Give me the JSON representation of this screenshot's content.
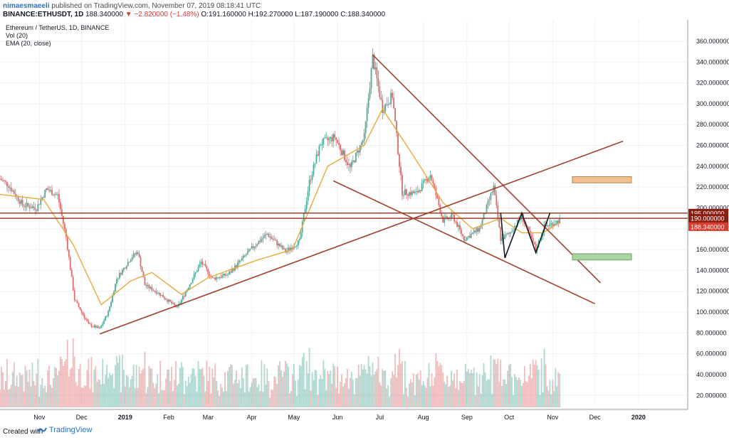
{
  "header": {
    "author": "nimaesmaeeli",
    "published_text": "published on TradingView.com, November 07, 2019 08:18:41 UTC",
    "symbol": "BINANCE:ETHUSDT, 1D",
    "last": "188.340000",
    "change": "−2.820000 (−1.48%)",
    "ohlc_open_label": "O:",
    "ohlc_open": "191.160000",
    "ohlc_high_label": "H:",
    "ohlc_high": "192.270000",
    "ohlc_low_label": "L:",
    "ohlc_low": "187.190000",
    "ohlc_close_label": "C:",
    "ohlc_close": "188.340000"
  },
  "footer": {
    "created_with": "Created with",
    "brand": "TradingView"
  },
  "colors": {
    "up": "#4fa89a",
    "down": "#d96d6d",
    "ema": "#e8a93b",
    "trend": "#a1402c",
    "pattern": "#131722",
    "orange_box": "#f2c08c",
    "green_box": "#a8d5a0",
    "price_tag": "#8b1e10",
    "last_tag": "#d93b2e"
  },
  "chart_data": {
    "type": "line",
    "legend": [
      "Ethereum / TetherUS, 1D, BINANCE",
      "Vol (20)",
      "EMA (20, close)"
    ],
    "y_ticks": [
      20,
      40,
      60,
      80,
      100,
      120,
      140,
      160,
      180,
      200,
      220,
      240,
      260,
      280,
      300,
      320,
      340,
      360
    ],
    "y_tick_labels": [
      "20.000000",
      "40.000000",
      "60.000000",
      "80.000000",
      "100.000000",
      "120.000000",
      "140.000000",
      "160.000000",
      "180.000000",
      "200.000000",
      "220.000000",
      "240.000000",
      "260.000000",
      "280.000000",
      "300.000000",
      "320.000000",
      "340.000000",
      "360.000000"
    ],
    "ylim": [
      12,
      375
    ],
    "x_labels": [
      "Nov",
      "Dec",
      "2019",
      "Feb",
      "Mar",
      "Apr",
      "May",
      "Jun",
      "Jul",
      "Aug",
      "Sep",
      "Oct",
      "Nov",
      "Dec",
      "2020"
    ],
    "x_label_dates": [
      "2018-11-01",
      "2018-12-01",
      "2019-01-01",
      "2019-02-01",
      "2019-03-01",
      "2019-04-01",
      "2019-05-01",
      "2019-06-01",
      "2019-07-01",
      "2019-08-01",
      "2019-09-01",
      "2019-10-01",
      "2019-11-01",
      "2019-12-01",
      "2020-01-01"
    ],
    "xlim": [
      "2018-10-04",
      "2020-02-05"
    ],
    "price_path": [
      [
        "2018-10-04",
        228
      ],
      [
        "2018-10-10",
        222
      ],
      [
        "2018-10-20",
        203
      ],
      [
        "2018-10-30",
        200
      ],
      [
        "2018-11-06",
        218
      ],
      [
        "2018-11-14",
        212
      ],
      [
        "2018-11-20",
        172
      ],
      [
        "2018-11-26",
        112
      ],
      [
        "2018-12-06",
        88
      ],
      [
        "2018-12-14",
        84
      ],
      [
        "2018-12-20",
        100
      ],
      [
        "2018-12-26",
        132
      ],
      [
        "2019-01-05",
        152
      ],
      [
        "2019-01-10",
        158
      ],
      [
        "2019-01-15",
        126
      ],
      [
        "2019-01-25",
        118
      ],
      [
        "2019-02-07",
        104
      ],
      [
        "2019-02-14",
        122
      ],
      [
        "2019-02-24",
        148
      ],
      [
        "2019-03-04",
        132
      ],
      [
        "2019-03-15",
        136
      ],
      [
        "2019-04-03",
        164
      ],
      [
        "2019-04-12",
        175
      ],
      [
        "2019-04-25",
        158
      ],
      [
        "2019-05-05",
        168
      ],
      [
        "2019-05-12",
        225
      ],
      [
        "2019-05-20",
        262
      ],
      [
        "2019-05-30",
        268
      ],
      [
        "2019-06-10",
        238
      ],
      [
        "2019-06-20",
        268
      ],
      [
        "2019-06-26",
        344
      ],
      [
        "2019-07-03",
        295
      ],
      [
        "2019-07-10",
        308
      ],
      [
        "2019-07-17",
        215
      ],
      [
        "2019-07-27",
        214
      ],
      [
        "2019-08-06",
        232
      ],
      [
        "2019-08-15",
        188
      ],
      [
        "2019-08-22",
        192
      ],
      [
        "2019-08-30",
        170
      ],
      [
        "2019-09-10",
        180
      ],
      [
        "2019-09-20",
        220
      ],
      [
        "2019-09-25",
        170
      ],
      [
        "2019-10-01",
        175
      ],
      [
        "2019-10-10",
        192
      ],
      [
        "2019-10-20",
        160
      ],
      [
        "2019-10-26",
        182
      ],
      [
        "2019-11-06",
        188
      ]
    ],
    "ema_path": [
      [
        "2018-10-04",
        213
      ],
      [
        "2018-11-04",
        208
      ],
      [
        "2018-11-25",
        165
      ],
      [
        "2018-12-15",
        107
      ],
      [
        "2019-01-05",
        130
      ],
      [
        "2019-01-20",
        138
      ],
      [
        "2019-02-10",
        117
      ],
      [
        "2019-03-01",
        133
      ],
      [
        "2019-04-05",
        150
      ],
      [
        "2019-04-30",
        160
      ],
      [
        "2019-05-25",
        240
      ],
      [
        "2019-06-20",
        260
      ],
      [
        "2019-07-03",
        295
      ],
      [
        "2019-07-25",
        250
      ],
      [
        "2019-08-15",
        205
      ],
      [
        "2019-09-05",
        180
      ],
      [
        "2019-09-25",
        190
      ],
      [
        "2019-10-10",
        176
      ],
      [
        "2019-10-25",
        176
      ],
      [
        "2019-11-06",
        186
      ]
    ],
    "volume_relative_max": 1.0,
    "trendlines": [
      {
        "from": [
          "2018-12-14",
          79
        ],
        "to": [
          "2019-12-21",
          264
        ]
      },
      {
        "from": [
          "2019-06-26",
          347
        ],
        "to": [
          "2019-12-05",
          128
        ]
      },
      {
        "from": [
          "2019-05-29",
          226
        ],
        "to": [
          "2019-12-01",
          108
        ]
      }
    ],
    "pattern_zigzag": [
      [
        "2019-09-25",
        195
      ],
      [
        "2019-09-28",
        152
      ],
      [
        "2019-10-10",
        195
      ],
      [
        "2019-10-20",
        157
      ],
      [
        "2019-10-30",
        195
      ]
    ],
    "zones": [
      {
        "color": "orange",
        "top": 230,
        "bottom": 224,
        "from": "2019-11-15",
        "to": "2019-12-27"
      },
      {
        "color": "green",
        "top": 156,
        "bottom": 150,
        "from": "2019-11-15",
        "to": "2019-12-27"
      }
    ],
    "horizontal_levels": [
      195,
      190
    ],
    "price_tags": [
      {
        "value": 195,
        "label": "195.000000",
        "kind": "level"
      },
      {
        "value": 190,
        "label": "190.000000",
        "kind": "level"
      },
      {
        "value": 182,
        "label": "188.340000",
        "kind": "last"
      }
    ]
  }
}
